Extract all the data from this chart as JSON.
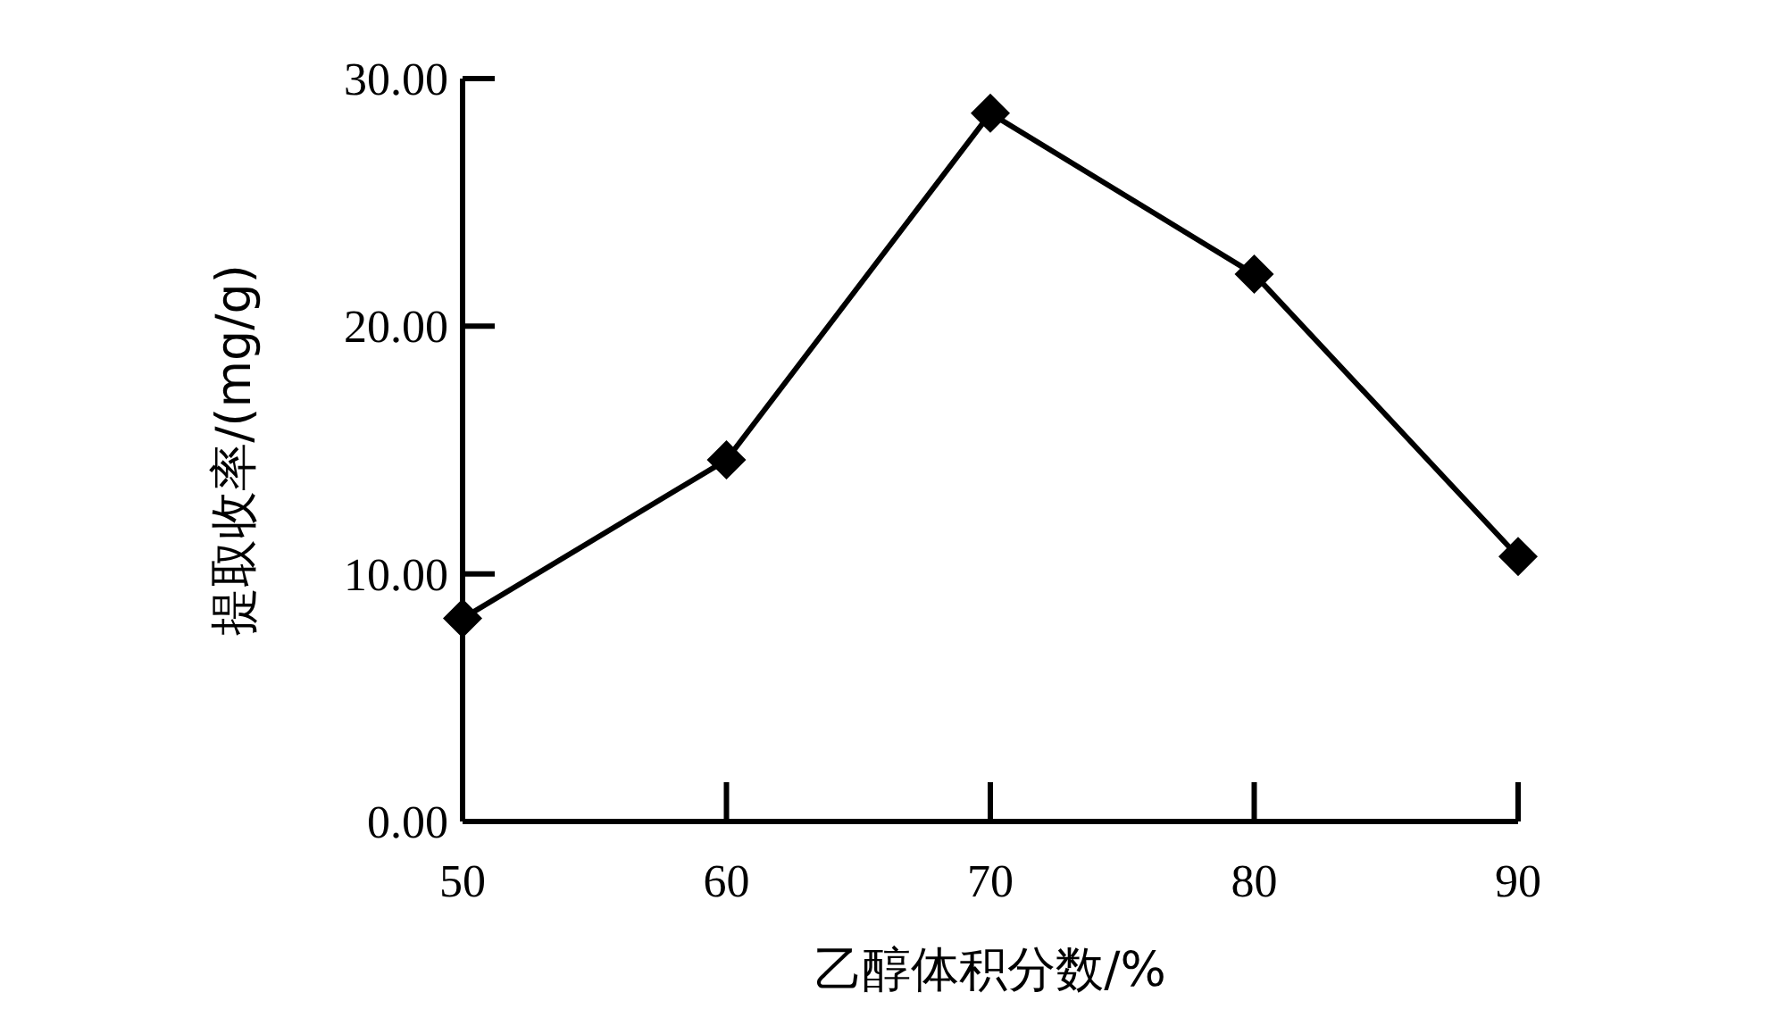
{
  "chart_data": {
    "type": "line",
    "xlabel": "乙醇体积分数/%",
    "ylabel": "提取收率/(mg/g)",
    "x": [
      50,
      60,
      70,
      80,
      90
    ],
    "series": [
      {
        "color": "#000000",
        "values": [
          8.2,
          14.6,
          28.6,
          22.1,
          10.7
        ]
      }
    ],
    "xlim": [
      50,
      90
    ],
    "xticks": [
      50,
      60,
      70,
      80,
      90
    ],
    "ylim": [
      0,
      30
    ],
    "yticks": [
      {
        "value": 0,
        "label": "0.00"
      },
      {
        "value": 10,
        "label": "10.00"
      },
      {
        "value": 20,
        "label": "20.00"
      },
      {
        "value": 30,
        "label": "30.00"
      }
    ],
    "marker": "diamond",
    "line_style": "solid",
    "grid": false
  }
}
